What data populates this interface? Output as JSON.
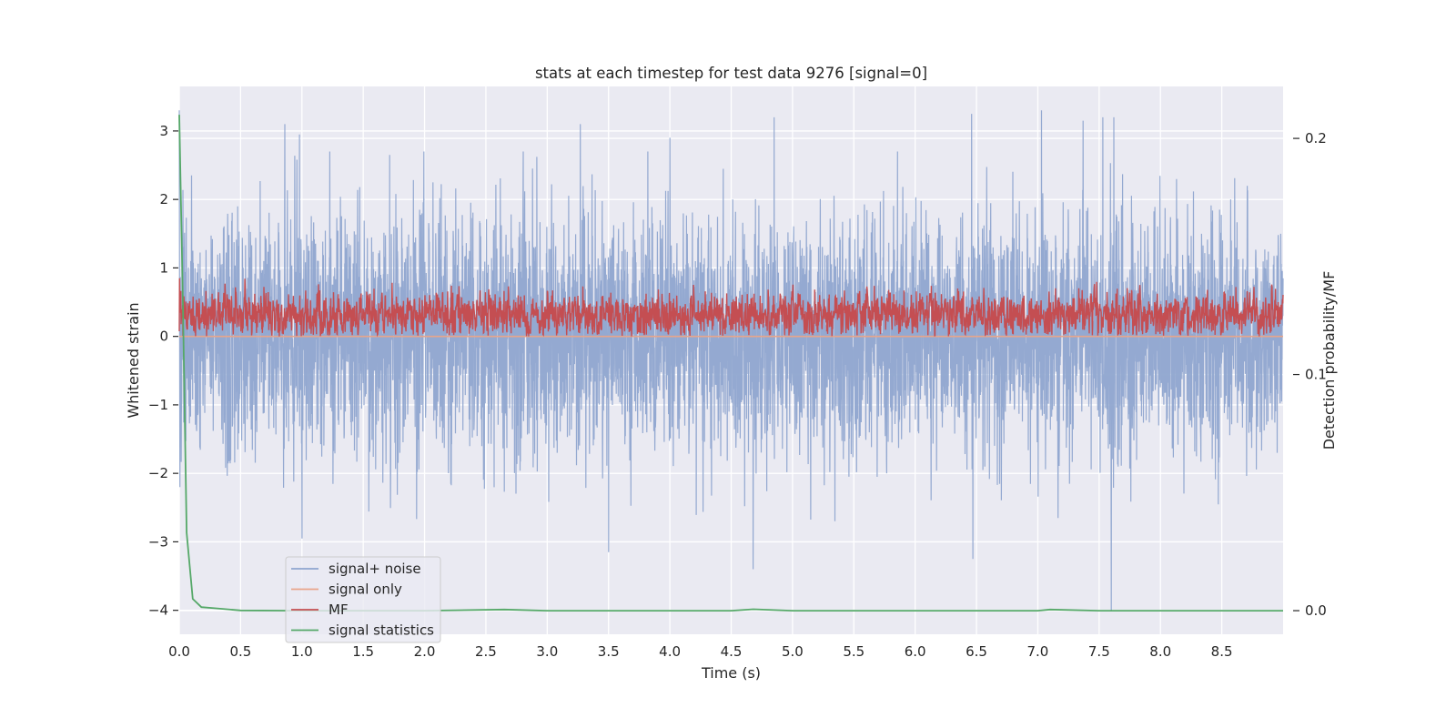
{
  "chart_data": {
    "type": "line",
    "title": "stats at each timestep for test data 9276 [signal=0]",
    "xlabel": "Time (s)",
    "ylabel": "Whitened strain",
    "y2label": "Detection probability/MF",
    "xlim": [
      0.0,
      9.0
    ],
    "ylim": [
      -4.35,
      3.65
    ],
    "y2lim": [
      -0.01,
      0.222
    ],
    "grid": true,
    "xticks": [
      0.0,
      0.5,
      1.0,
      1.5,
      2.0,
      2.5,
      3.0,
      3.5,
      4.0,
      4.5,
      5.0,
      5.5,
      6.0,
      6.5,
      7.0,
      7.5,
      8.0,
      8.5
    ],
    "xtick_labels": [
      "0.0",
      "0.5",
      "1.0",
      "1.5",
      "2.0",
      "2.5",
      "3.0",
      "3.5",
      "4.0",
      "4.5",
      "5.0",
      "5.5",
      "6.0",
      "6.5",
      "7.0",
      "7.5",
      "8.0",
      "8.5"
    ],
    "yticks": [
      -4,
      -3,
      -2,
      -1,
      0,
      1,
      2,
      3
    ],
    "ytick_labels": [
      "−4",
      "−3",
      "−2",
      "−1",
      "0",
      "1",
      "2",
      "3"
    ],
    "y2ticks": [
      0.0,
      0.1,
      0.2
    ],
    "y2tick_labels": [
      "0.0",
      "0.1",
      "0.2"
    ],
    "legend_position": "lower-left",
    "series": [
      {
        "name": "signal+ noise",
        "axis": "left",
        "color": "#8fa5cf",
        "generated": "gaussian noise, std 0.85, with spike peaks",
        "peaks": [
          [
            0.86,
            3.1
          ],
          [
            0.98,
            2.95
          ],
          [
            4.0,
            2.9
          ],
          [
            4.85,
            3.2
          ],
          [
            6.46,
            3.25
          ],
          [
            7.03,
            3.3
          ],
          [
            7.37,
            3.15
          ],
          [
            7.53,
            3.2
          ],
          [
            7.62,
            3.2
          ],
          [
            3.27,
            3.1
          ],
          [
            3.5,
            -3.15
          ],
          [
            4.68,
            -3.4
          ],
          [
            6.47,
            -3.25
          ],
          [
            7.6,
            -4.0
          ],
          [
            1.0,
            -2.95
          ]
        ]
      },
      {
        "name": "signal only",
        "axis": "left",
        "color": "#e8a58a",
        "x": [
          0.0,
          9.0
        ],
        "y": [
          0.0,
          0.0
        ]
      },
      {
        "name": "MF",
        "axis": "left",
        "color": "#c44e52",
        "generated": "noisy band between 0.0 and 0.9, mean 0.32"
      },
      {
        "name": "signal statistics",
        "axis": "right",
        "color": "#55a868",
        "x": [
          0.0,
          0.03,
          0.06,
          0.11,
          0.18,
          0.3,
          0.5,
          1.0,
          1.5,
          2.0,
          2.65,
          3.0,
          3.5,
          4.0,
          4.5,
          4.68,
          5.0,
          5.5,
          6.0,
          6.5,
          7.0,
          7.1,
          7.5,
          8.0,
          8.5,
          9.0
        ],
        "y": [
          0.21,
          0.13,
          0.033,
          0.005,
          0.0015,
          0.001,
          0.0001,
          0.0,
          0.0,
          0.0,
          0.0005,
          0.0,
          0.0,
          0.0,
          0.0,
          0.0006,
          0.0,
          0.0,
          0.0,
          0.0,
          0.0,
          0.0005,
          0.0,
          0.0,
          0.0,
          0.0
        ]
      }
    ]
  }
}
